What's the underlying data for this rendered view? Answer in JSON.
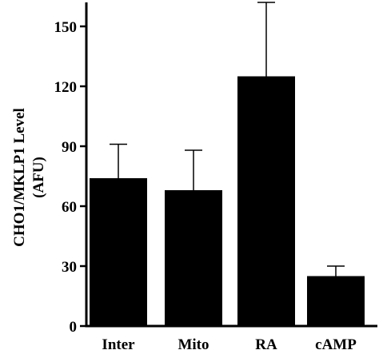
{
  "chart_data": {
    "type": "bar",
    "categories": [
      "Inter",
      "Mito",
      "RA",
      "cAMP"
    ],
    "values": [
      74,
      68,
      125,
      25
    ],
    "errors_upper": [
      17,
      20,
      37,
      5
    ],
    "ylabel_line1": "CHO1/MKLP1 Level",
    "ylabel_line2": "(AFU)",
    "yticks": [
      0,
      30,
      60,
      90,
      120,
      150
    ],
    "ylim": [
      0,
      162
    ],
    "grid": false,
    "bar_color": "#000000"
  }
}
